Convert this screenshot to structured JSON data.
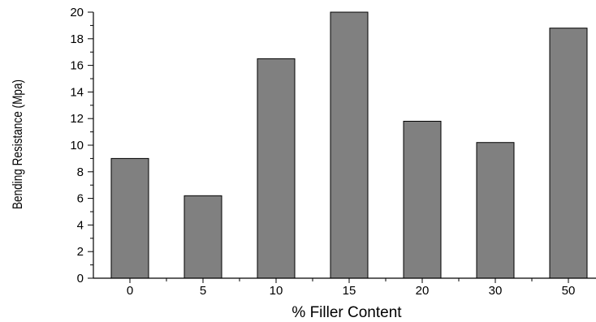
{
  "chart_data": {
    "type": "bar",
    "categories": [
      "0",
      "5",
      "10",
      "15",
      "20",
      "30",
      "50"
    ],
    "values": [
      9.0,
      6.2,
      16.5,
      20.0,
      11.8,
      10.2,
      18.8
    ],
    "xlabel": "% Filler Content",
    "ylabel": "Bending Resistance  (Mpa)",
    "ylim": [
      0,
      20
    ],
    "yticks": [
      "0",
      "2",
      "4",
      "6",
      "8",
      "10",
      "12",
      "14",
      "16",
      "18",
      "20"
    ],
    "grid": false,
    "legend": "none",
    "colors": {
      "bar_fill": "#808080",
      "bar_stroke": "#000000",
      "axis": "#000000"
    }
  }
}
